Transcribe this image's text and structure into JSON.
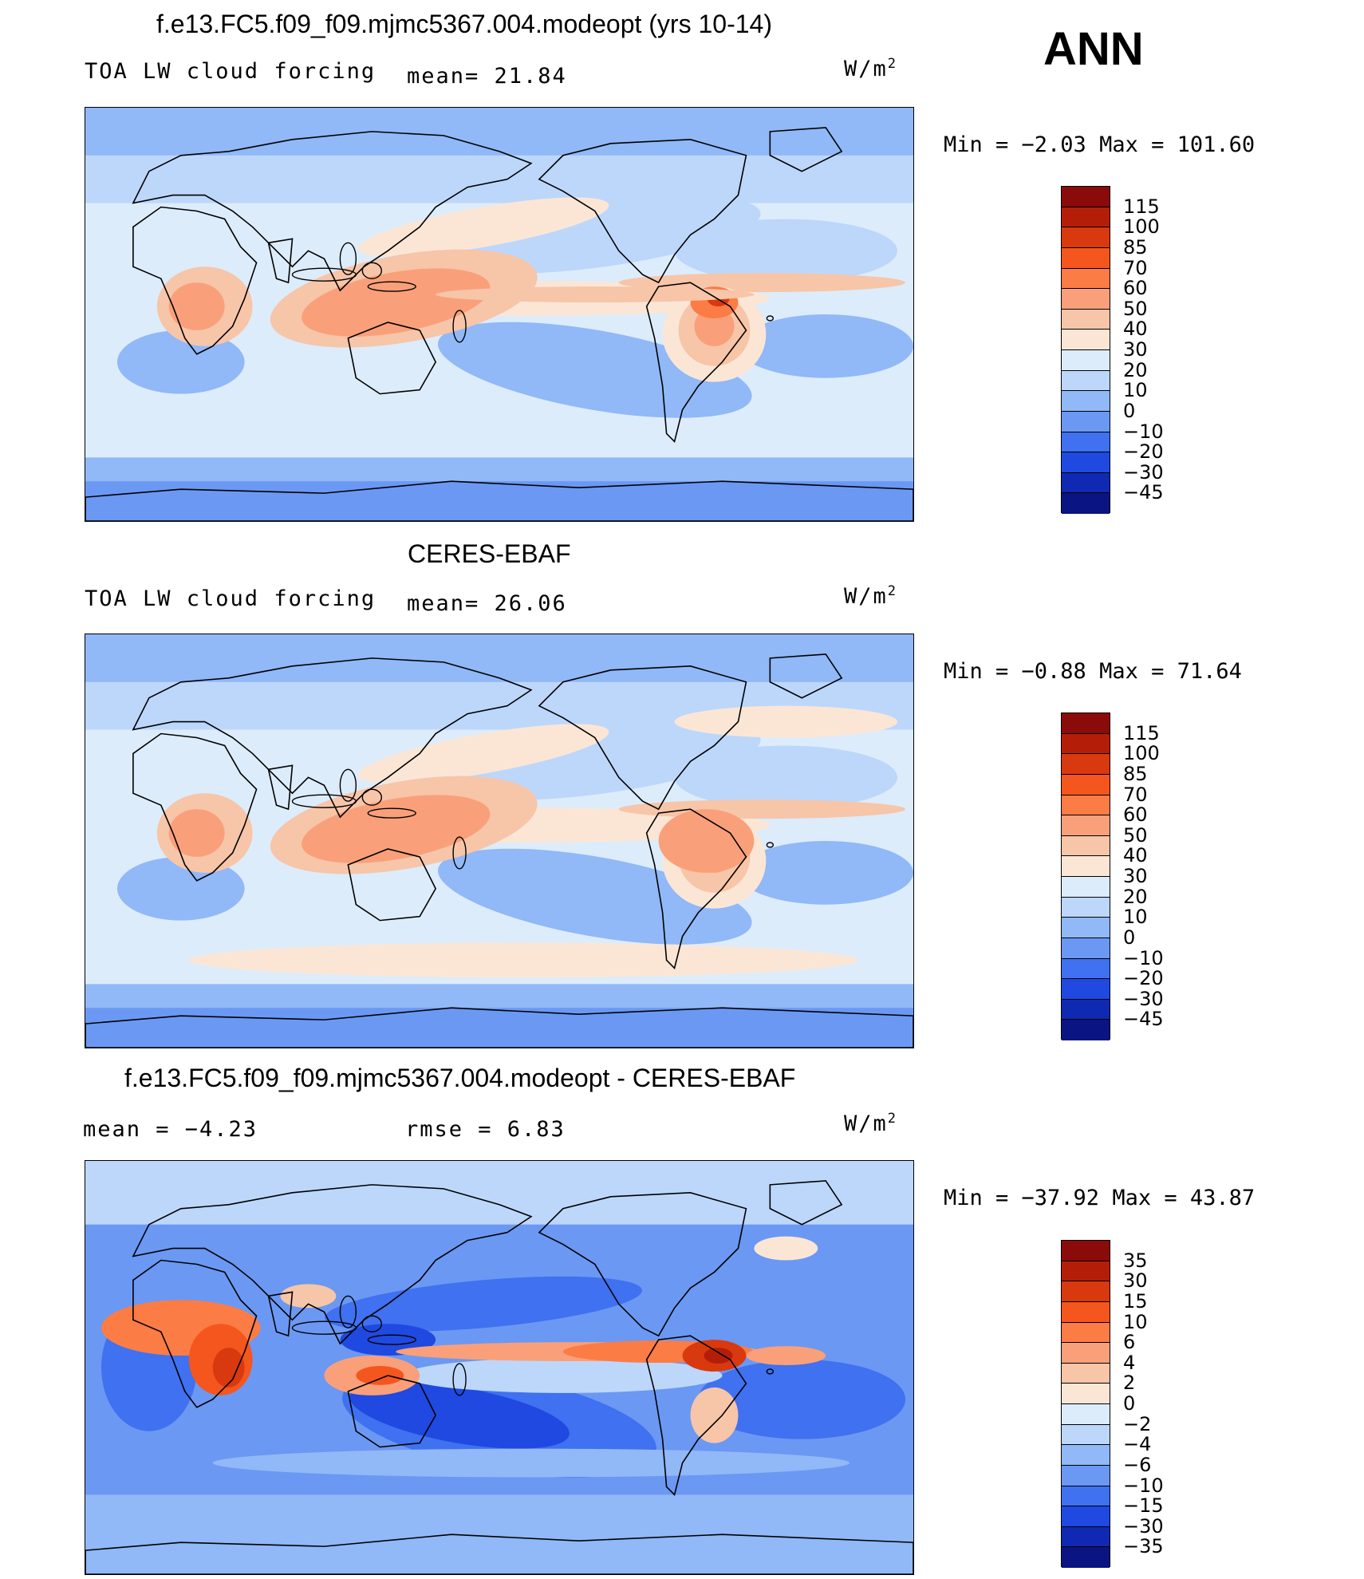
{
  "season": "ANN",
  "units": "W/m2",
  "panels": [
    {
      "title": "f.e13.FC5.f09_f09.mjmc5367.004.modeopt (yrs 10-14)",
      "variable": "TOA LW cloud forcing",
      "stat1": "mean=  21.84",
      "stat2": "",
      "minmax": "Min =   −2.03 Max = 101.60",
      "colorbar": {
        "levels": [
          "115",
          "100",
          "85",
          "70",
          "60",
          "50",
          "40",
          "30",
          "20",
          "10",
          "0",
          "−10",
          "−20",
          "−30",
          "−45"
        ],
        "colors": [
          "#8b0a0a",
          "#b41e08",
          "#d9390e",
          "#f5561d",
          "#fb7c45",
          "#f9a07a",
          "#f7c5a8",
          "#fbe6d6",
          "#dcecfb",
          "#bdd7fb",
          "#91b8f7",
          "#6b98f3",
          "#3f71f0",
          "#1f49e0",
          "#0f29b2",
          "#0a1482"
        ]
      },
      "map_field": "model"
    },
    {
      "title": "CERES-EBAF",
      "variable": "TOA LW cloud forcing",
      "stat1": "mean=  26.06",
      "stat2": "",
      "minmax": "Min =   −0.88 Max =   71.64",
      "colorbar": {
        "levels": [
          "115",
          "100",
          "85",
          "70",
          "60",
          "50",
          "40",
          "30",
          "20",
          "10",
          "0",
          "−10",
          "−20",
          "−30",
          "−45"
        ],
        "colors": [
          "#8b0a0a",
          "#b41e08",
          "#d9390e",
          "#f5561d",
          "#fb7c45",
          "#f9a07a",
          "#f7c5a8",
          "#fbe6d6",
          "#dcecfb",
          "#bdd7fb",
          "#91b8f7",
          "#6b98f3",
          "#3f71f0",
          "#1f49e0",
          "#0f29b2",
          "#0a1482"
        ]
      },
      "map_field": "obs"
    },
    {
      "title": "f.e13.FC5.f09_f09.mjmc5367.004.modeopt - CERES-EBAF",
      "variable": "mean =   −4.23",
      "stat1": "rmse =    6.83",
      "stat2": "",
      "minmax": "Min = −37.92 Max =   43.87",
      "colorbar": {
        "levels": [
          "35",
          "30",
          "15",
          "10",
          "6",
          "4",
          "2",
          "0",
          "−2",
          "−4",
          "−6",
          "−10",
          "−15",
          "−30",
          "−35"
        ],
        "colors": [
          "#8b0a0a",
          "#b41e08",
          "#d9390e",
          "#f5561d",
          "#fb7c45",
          "#f9a07a",
          "#f7c5a8",
          "#fbe6d6",
          "#dcecfb",
          "#bdd7fb",
          "#91b8f7",
          "#6b98f3",
          "#3f71f0",
          "#1f49e0",
          "#0f29b2",
          "#0a1482"
        ]
      },
      "map_field": "diff"
    }
  ]
}
